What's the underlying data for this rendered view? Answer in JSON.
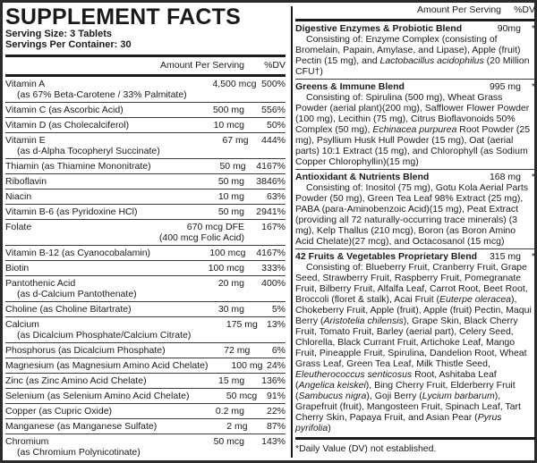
{
  "title": "SUPPLEMENT FACTS",
  "serving_size": "Serving Size: 3 Tablets",
  "servings_per_container": "Servings Per Container: 30",
  "left_header": {
    "amount": "Amount Per Serving",
    "dv": "%DV"
  },
  "nutrients": [
    {
      "name": "Vitamin A",
      "sub": "(as 67% Beta-Carotene / 33% Palmitate)",
      "amount": "4,500 mcg",
      "dv": "500%"
    },
    {
      "name": "Vitamin C (as Ascorbic Acid)",
      "amount": "500 mg",
      "dv": "556%"
    },
    {
      "name": "Vitamin D (as Cholecalciferol)",
      "amount": "10 mcg",
      "dv": "50%"
    },
    {
      "name": "Vitamin E",
      "sub": "(as d-Alpha Tocopheryl Succinate)",
      "amount": "67 mg",
      "dv": "444%"
    },
    {
      "name": "Thiamin (as Thiamine Mononitrate)",
      "amount": "50 mg",
      "dv": "4167%"
    },
    {
      "name": "Riboflavin",
      "amount": "50 mg",
      "dv": "3846%"
    },
    {
      "name": "Niacin",
      "amount": "10 mg",
      "dv": "63%"
    },
    {
      "name": "Vitamin B-6 (as Pyridoxine HCl)",
      "amount": "50 mg",
      "dv": "2941%"
    },
    {
      "name": "Folate",
      "amount": "670 mcg DFE",
      "amount_sub": "(400 mcg Folic Acid)",
      "dv": "167%"
    },
    {
      "name": "Vitamin B-12 (as Cyanocobalamin)",
      "amount": "100 mcg",
      "dv": "4167%"
    },
    {
      "name": "Biotin",
      "amount": "100 mcg",
      "dv": "333%"
    },
    {
      "name": "Pantothenic Acid",
      "sub": "(as d-Calcium Pantothenate)",
      "amount": "20 mg",
      "dv": "400%"
    },
    {
      "name": "Choline (as Choline Bitartrate)",
      "amount": "30 mg",
      "dv": "5%"
    },
    {
      "name": "Calcium",
      "sub": "(as Dicalcium Phosphate/Calcium Citrate)",
      "amount": "175 mg",
      "dv": "13%"
    },
    {
      "name": "Phosphorus (as Dicalcium Phosphate)",
      "amount": "72 mg",
      "dv": "6%"
    },
    {
      "name": "Magnesium (as Magnesium Amino Acid Chelate)",
      "amount": "100 mg",
      "dv": "24%"
    },
    {
      "name": "Zinc (as Zinc Amino Acid Chelate)",
      "amount": "15 mg",
      "dv": "136%"
    },
    {
      "name": "Selenium (as Selenium Amino Acid Chelate)",
      "amount": "50 mcg",
      "dv": "91%"
    },
    {
      "name": "Copper (as Cupric Oxide)",
      "amount": "0.2 mg",
      "dv": "22%"
    },
    {
      "name": "Manganese (as Manganese Sulfate)",
      "amount": "2 mg",
      "dv": "87%"
    },
    {
      "name": "Chromium",
      "sub": "(as Chromium Polynicotinate)",
      "amount": "50 mcg",
      "dv": "143%"
    }
  ],
  "right_header": {
    "amount": "Amount Per Serving",
    "dv": "%DV"
  },
  "blends": [
    {
      "name": "Digestive Enzymes & Probiotic Blend",
      "amount": "90mg",
      "dv": "*",
      "description_html": "Consisting of: Enzyme Complex (consisting of Bromelain, Papain, Amylase, and Lipase), Apple (fruit) Pectin (15 mg), and <i>Lactobacillus acidophilus</i> (20 Million CFU&dagger;)"
    },
    {
      "name": "Greens & Immune Blend",
      "amount": "995 mg",
      "dv": "*",
      "description_html": "Consisting of: Spirulina (500 mg), Wheat Grass Powder (aerial plant)(200 mg), Safflower Flower Powder (100 mg), Lecithin (75 mg), Citrus Bioflavonoids 50% Complex (50 mg), <i>Echinacea purpurea</i> Root Powder (25 mg), Psyllium Husk Hull Powder (15 mg), Oat (aerial parts) 10:1 Extract (15 mg), and Chlorophyll (as Sodium Copper Chlorophyllin)(15 mg)"
    },
    {
      "name": "Antioxidant & Nutrients Blend",
      "amount": "168 mg",
      "dv": "*",
      "description_html": "Consisting of: Inositol (75 mg), Gotu Kola Aerial Parts Powder (50 mg), Green Tea Leaf 98% Extract (25 mg), PABA (para-Aminobenzoic Acid)(15 mg), Peat Extract (providing all 72 naturally-occurring trace minerals) (3 mg), Kelp Thallus (210 mcg), Boron (as Boron Amino Acid Chelate)(27 mcg), and Octacosanol (15 mcg)"
    },
    {
      "name": "42 Fruits & Vegetables Proprietary Blend",
      "amount": "315 mg",
      "dv": "*",
      "description_html": "Consisting of: Blueberry Fruit, Cranberry Fruit, Grape Seed, Strawberry Fruit, Raspberry Fruit, Pomegranate Fruit, Bilberry Fruit, Alfalfa Leaf, Carrot Root, Beet Root, Broccoli (floret &amp; stalk), Acai Fruit (<i>Euterpe oleracea</i>), Chokeberry Fruit, Apple (fruit), Apple (fruit) Pectin, Maqui Berry (<i>Aristotelia chilensis</i>), Grape Skin, Black Cherry Fruit, Tomato Fruit, Barley (aerial part), Celery Seed, Chlorella, Black Currant Fruit, Artichoke Leaf, Mango Fruit, Pineapple Fruit, Spirulina, Dandelion Root, Wheat Grass Leaf, Green Tea Leaf, Milk Thistle Seed, <i>Eleutherococcus senticosus</i> Root, Ashitaba Leaf (<i>Angelica keiskei</i>), Bing Cherry Fruit, Elderberry Fruit (<i>Sambucus nigra</i>), Goji Berry (<i>Lycium barbarum</i>), Grapefruit (fruit), Mangosteen Fruit, Spinach Leaf, Tart Cherry Skin, Papaya Fruit, and Asian Pear (<i>Pyrus pyrifolia</i>)"
    }
  ],
  "footnote": "*Daily Value (DV) not established."
}
